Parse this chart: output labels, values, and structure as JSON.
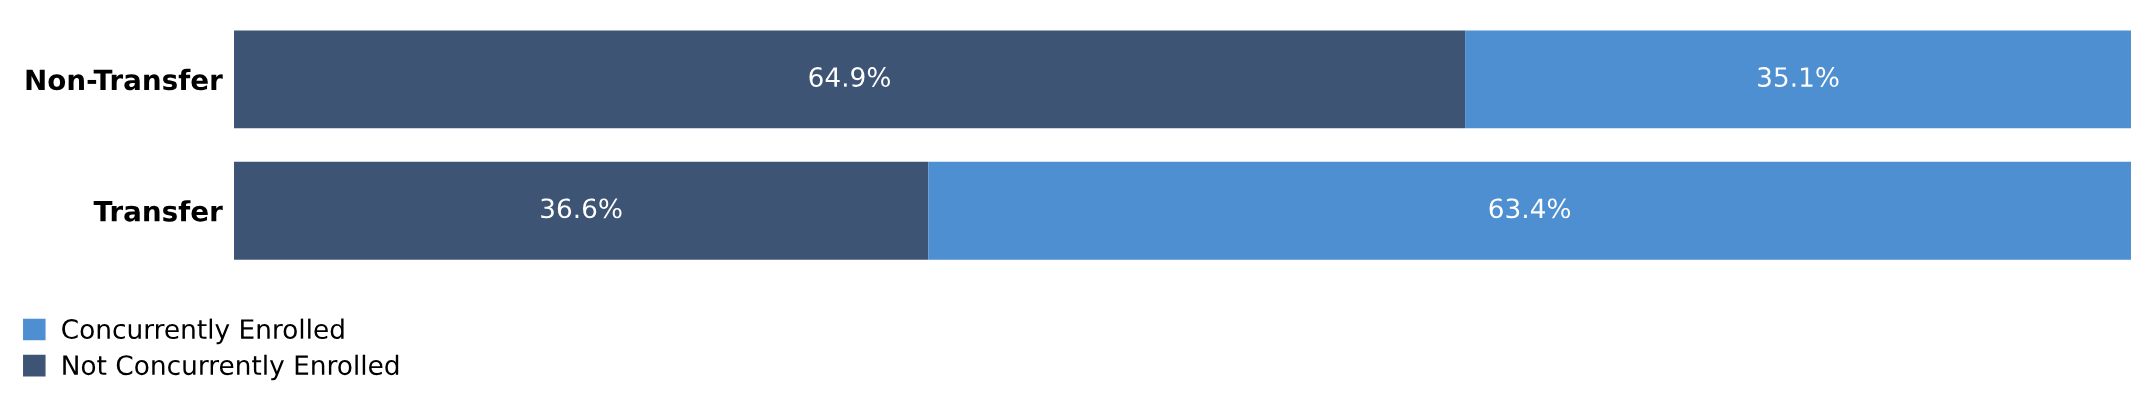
{
  "chart_data": {
    "type": "bar",
    "orientation": "horizontal",
    "stacked": true,
    "categories": [
      "Non-Transfer",
      "Transfer"
    ],
    "series": [
      {
        "name": "Not Concurrently Enrolled",
        "color": "#3e5475",
        "values": [
          64.9,
          36.6
        ],
        "value_labels": [
          "64.9%",
          "36.6%"
        ]
      },
      {
        "name": "Concurrently Enrolled",
        "color": "#4d8fd1",
        "values": [
          35.1,
          63.4
        ],
        "value_labels": [
          "35.1%",
          "63.4%"
        ]
      }
    ],
    "tick_labels": "y",
    "grid": false,
    "legend": "bottom left"
  }
}
